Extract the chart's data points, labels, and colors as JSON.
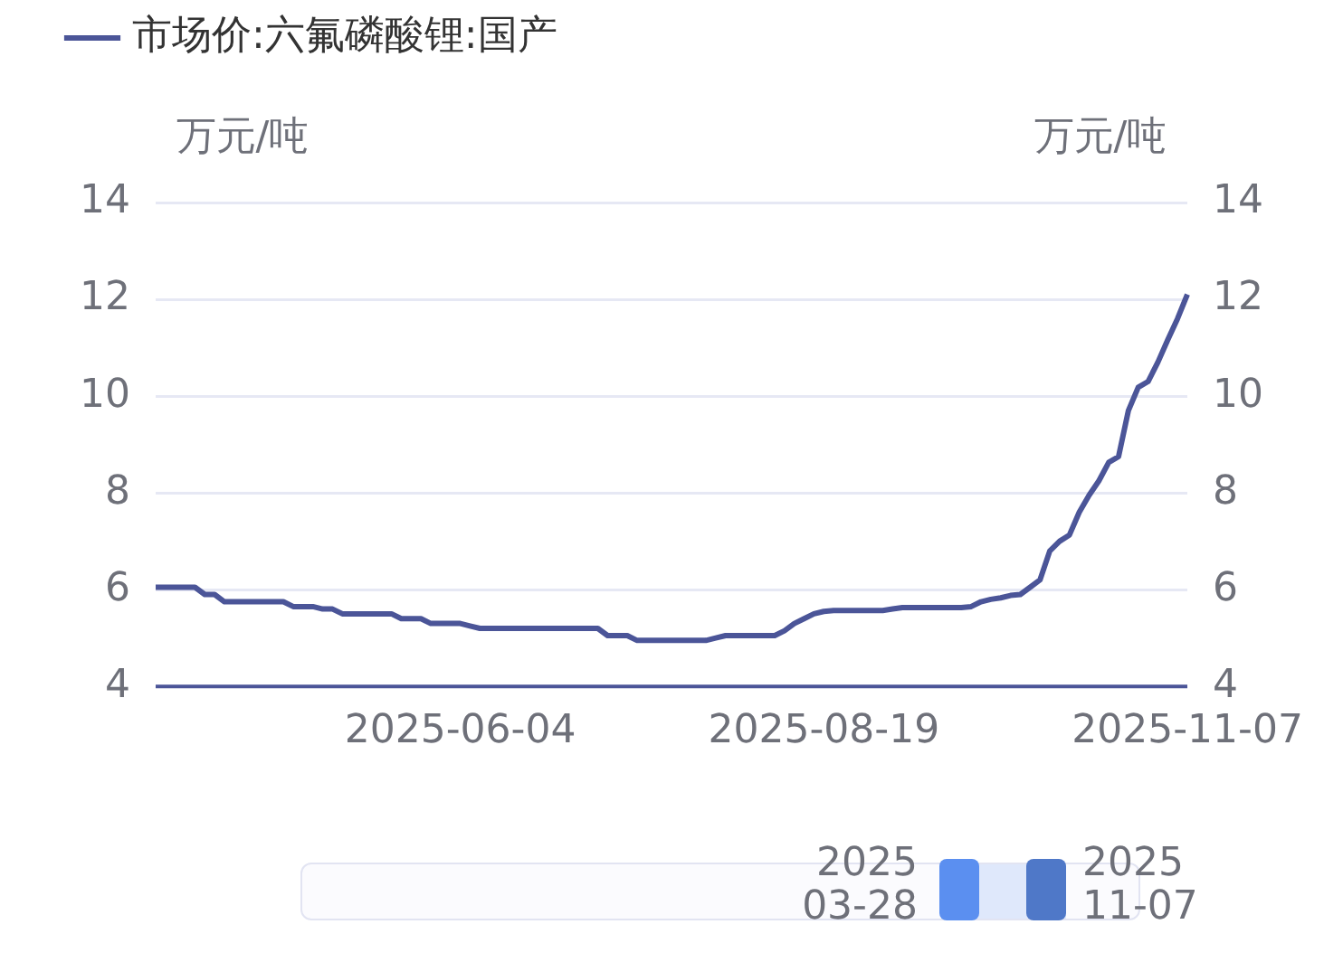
{
  "chart_data": {
    "type": "line",
    "categories": [
      null,
      null,
      null,
      null,
      null,
      null,
      null,
      null,
      null,
      null,
      null,
      null,
      null,
      null,
      null,
      null,
      null,
      null,
      null,
      null,
      null,
      null,
      null,
      null,
      null,
      null,
      null,
      null,
      null,
      null,
      null,
      "2025-06-04",
      null,
      null,
      null,
      null,
      null,
      null,
      null,
      null,
      null,
      null,
      null,
      null,
      null,
      null,
      null,
      null,
      null,
      null,
      null,
      null,
      null,
      null,
      null,
      null,
      null,
      null,
      null,
      null,
      null,
      null,
      null,
      null,
      null,
      null,
      null,
      null,
      "2025-08-19",
      null,
      null,
      null,
      null,
      null,
      null,
      null,
      null,
      null,
      null,
      null,
      null,
      null,
      null,
      null,
      null,
      null,
      null,
      null,
      null,
      null,
      null,
      null,
      null,
      null,
      null,
      null,
      null,
      null,
      null,
      null,
      null,
      null,
      null,
      null,
      null,
      "2025-11-07"
    ],
    "series": [
      {
        "name": "市场价:六氟磷酸锂:国产",
        "color": "#4b5598",
        "values": [
          6.05,
          6.05,
          6.05,
          6.05,
          6.05,
          5.9,
          5.9,
          5.75,
          5.75,
          5.75,
          5.75,
          5.75,
          5.75,
          5.75,
          5.65,
          5.65,
          5.65,
          5.6,
          5.6,
          5.5,
          5.5,
          5.5,
          5.5,
          5.5,
          5.5,
          5.4,
          5.4,
          5.4,
          5.3,
          5.3,
          5.3,
          5.3,
          5.25,
          5.2,
          5.2,
          5.2,
          5.2,
          5.2,
          5.2,
          5.2,
          5.2,
          5.2,
          5.2,
          5.2,
          5.2,
          5.2,
          5.05,
          5.05,
          5.05,
          4.95,
          4.95,
          4.95,
          4.95,
          4.95,
          4.95,
          4.95,
          4.95,
          5.0,
          5.05,
          5.05,
          5.05,
          5.05,
          5.05,
          5.05,
          5.15,
          5.3,
          5.4,
          5.5,
          5.55,
          5.57,
          5.57,
          5.57,
          5.57,
          5.57,
          5.57,
          5.6,
          5.63,
          5.63,
          5.63,
          5.63,
          5.63,
          5.63,
          5.63,
          5.65,
          5.75,
          5.8,
          5.83,
          5.88,
          5.9,
          6.05,
          6.2,
          6.8,
          7.0,
          7.13,
          7.6,
          7.95,
          8.25,
          8.63,
          8.75,
          9.7,
          10.18,
          10.3,
          10.7,
          11.16,
          11.6,
          12.1
        ]
      }
    ],
    "ylabel": "万元/吨",
    "y2label": "万元/吨",
    "ylim": [
      4,
      14
    ],
    "yticks": [
      4,
      6,
      8,
      10,
      12,
      14
    ],
    "y2lim": [
      4,
      14
    ],
    "y2ticks": [
      4,
      6,
      8,
      10,
      12,
      14
    ],
    "grid": "y",
    "legend": "top left",
    "marker": "none",
    "line_style": "solid",
    "annotations": [
      "2025\n03-28",
      "2025\n11-07"
    ]
  }
}
